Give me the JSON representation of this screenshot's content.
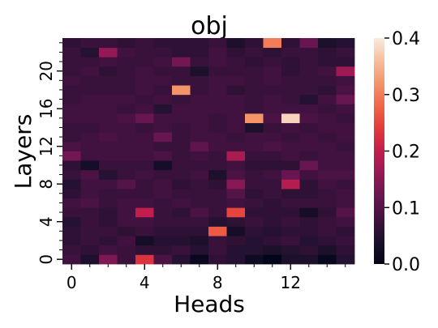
{
  "chart_data": {
    "type": "heatmap",
    "title": "obj",
    "xlabel": "Heads",
    "ylabel": "Layers",
    "x_ticks": [
      0,
      4,
      8,
      12
    ],
    "y_ticks": [
      0,
      4,
      8,
      12,
      16,
      20
    ],
    "n_heads": 16,
    "n_layers": 24,
    "colorbar": {
      "range": [
        0.0,
        0.4
      ],
      "ticks": [
        "0.0",
        "0.1",
        "0.2",
        "0.3",
        "0.4"
      ],
      "colormap": "rocket"
    },
    "values": [
      [
        0.08,
        0.04,
        0.14,
        0.07,
        0.23,
        0.09,
        0.05,
        0.01,
        0.06,
        0.05,
        0.02,
        0.0,
        0.04,
        0.04,
        0.01,
        0.05
      ],
      [
        0.07,
        0.06,
        0.08,
        0.07,
        0.06,
        0.06,
        0.07,
        0.05,
        0.07,
        0.05,
        0.05,
        0.04,
        0.05,
        0.06,
        0.04,
        0.06
      ],
      [
        0.06,
        0.07,
        0.06,
        0.08,
        0.03,
        0.05,
        0.05,
        0.04,
        0.07,
        0.06,
        0.05,
        0.06,
        0.07,
        0.05,
        0.06,
        0.07
      ],
      [
        0.06,
        0.07,
        0.07,
        0.06,
        0.07,
        0.06,
        0.06,
        0.06,
        0.27,
        0.03,
        0.06,
        0.05,
        0.06,
        0.06,
        0.07,
        0.06
      ],
      [
        0.05,
        0.07,
        0.06,
        0.08,
        0.08,
        0.07,
        0.07,
        0.07,
        0.05,
        0.06,
        0.07,
        0.06,
        0.07,
        0.06,
        0.07,
        0.08
      ],
      [
        0.07,
        0.07,
        0.06,
        0.08,
        0.2,
        0.07,
        0.06,
        0.09,
        0.07,
        0.25,
        0.06,
        0.06,
        0.06,
        0.03,
        0.06,
        0.1
      ],
      [
        0.08,
        0.09,
        0.07,
        0.08,
        0.08,
        0.07,
        0.08,
        0.07,
        0.07,
        0.08,
        0.07,
        0.06,
        0.07,
        0.07,
        0.07,
        0.08
      ],
      [
        0.06,
        0.08,
        0.07,
        0.07,
        0.07,
        0.08,
        0.07,
        0.07,
        0.07,
        0.1,
        0.06,
        0.07,
        0.06,
        0.06,
        0.07,
        0.08
      ],
      [
        0.05,
        0.08,
        0.08,
        0.1,
        0.07,
        0.08,
        0.06,
        0.07,
        0.06,
        0.15,
        0.07,
        0.07,
        0.19,
        0.06,
        0.08,
        0.07
      ],
      [
        0.07,
        0.09,
        0.05,
        0.07,
        0.08,
        0.07,
        0.07,
        0.08,
        0.04,
        0.09,
        0.07,
        0.08,
        0.12,
        0.08,
        0.09,
        0.09
      ],
      [
        0.06,
        0.03,
        0.07,
        0.07,
        0.07,
        0.03,
        0.07,
        0.07,
        0.07,
        0.08,
        0.06,
        0.06,
        0.06,
        0.12,
        0.08,
        0.08
      ],
      [
        0.13,
        0.08,
        0.08,
        0.08,
        0.08,
        0.09,
        0.07,
        0.08,
        0.07,
        0.18,
        0.07,
        0.07,
        0.08,
        0.07,
        0.08,
        0.08
      ],
      [
        0.09,
        0.08,
        0.08,
        0.08,
        0.08,
        0.07,
        0.07,
        0.11,
        0.08,
        0.08,
        0.08,
        0.09,
        0.08,
        0.08,
        0.08,
        0.07
      ],
      [
        0.07,
        0.08,
        0.09,
        0.08,
        0.08,
        0.12,
        0.07,
        0.08,
        0.08,
        0.07,
        0.08,
        0.08,
        0.07,
        0.08,
        0.07,
        0.08
      ],
      [
        0.07,
        0.07,
        0.08,
        0.08,
        0.07,
        0.08,
        0.07,
        0.08,
        0.07,
        0.08,
        0.04,
        0.07,
        0.08,
        0.07,
        0.08,
        0.08
      ],
      [
        0.08,
        0.08,
        0.08,
        0.09,
        0.12,
        0.08,
        0.08,
        0.08,
        0.07,
        0.08,
        0.32,
        0.09,
        0.38,
        0.09,
        0.08,
        0.07
      ],
      [
        0.08,
        0.08,
        0.08,
        0.07,
        0.08,
        0.05,
        0.08,
        0.08,
        0.08,
        0.08,
        0.07,
        0.08,
        0.08,
        0.08,
        0.07,
        0.08
      ],
      [
        0.07,
        0.08,
        0.08,
        0.08,
        0.07,
        0.08,
        0.07,
        0.08,
        0.08,
        0.08,
        0.07,
        0.08,
        0.07,
        0.05,
        0.08,
        0.12
      ],
      [
        0.07,
        0.07,
        0.07,
        0.07,
        0.08,
        0.07,
        0.32,
        0.07,
        0.08,
        0.06,
        0.07,
        0.07,
        0.07,
        0.07,
        0.06,
        0.09
      ],
      [
        0.08,
        0.07,
        0.07,
        0.07,
        0.08,
        0.08,
        0.07,
        0.07,
        0.08,
        0.08,
        0.07,
        0.08,
        0.07,
        0.07,
        0.07,
        0.08
      ],
      [
        0.07,
        0.08,
        0.06,
        0.07,
        0.08,
        0.07,
        0.07,
        0.04,
        0.07,
        0.07,
        0.07,
        0.08,
        0.06,
        0.07,
        0.08,
        0.17
      ],
      [
        0.07,
        0.07,
        0.08,
        0.07,
        0.07,
        0.08,
        0.13,
        0.07,
        0.08,
        0.07,
        0.06,
        0.07,
        0.06,
        0.07,
        0.06,
        0.06
      ],
      [
        0.07,
        0.05,
        0.16,
        0.08,
        0.07,
        0.07,
        0.06,
        0.06,
        0.08,
        0.06,
        0.07,
        0.06,
        0.07,
        0.07,
        0.06,
        0.07
      ],
      [
        0.06,
        0.07,
        0.07,
        0.06,
        0.07,
        0.06,
        0.06,
        0.06,
        0.07,
        0.04,
        0.06,
        0.3,
        0.06,
        0.12,
        0.04,
        0.05
      ]
    ]
  }
}
